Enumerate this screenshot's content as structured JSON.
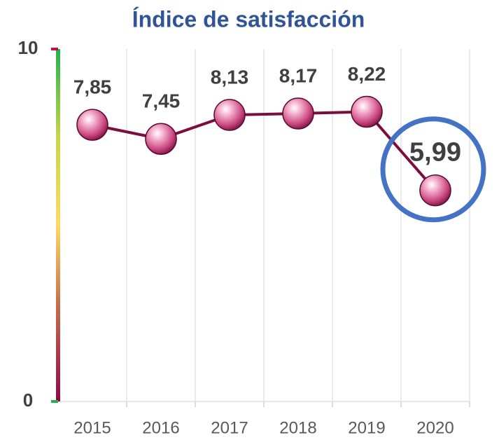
{
  "chart_data": {
    "type": "line",
    "title": "Índice de satisfacción",
    "categories": [
      "2015",
      "2016",
      "2017",
      "2018",
      "2019",
      "2020"
    ],
    "series": [
      {
        "color": "#7b0e3f",
        "values": [
          7.85,
          7.45,
          8.13,
          8.17,
          8.22,
          5.99
        ],
        "value_labels": [
          "7,85",
          "7,45",
          "8,13",
          "8,17",
          "8,22",
          "5,99"
        ]
      }
    ],
    "ylim": [
      0,
      10
    ],
    "yticks": [
      0,
      10
    ],
    "grid": true
  }
}
